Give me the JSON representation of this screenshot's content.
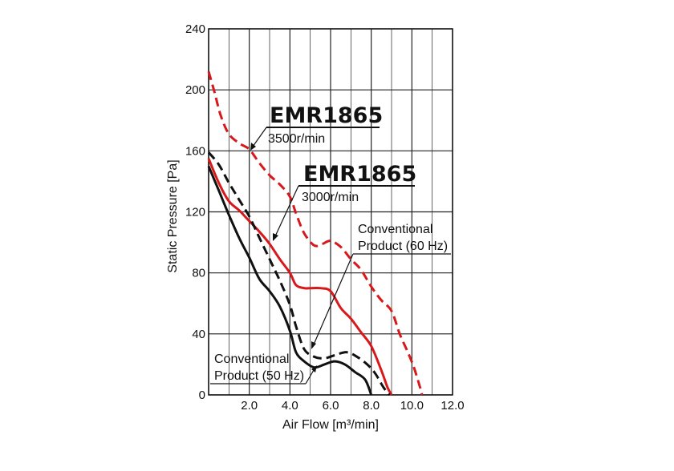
{
  "chart_data": {
    "type": "line",
    "xlabel": "Air Flow [m³/min]",
    "ylabel": "Static Pressure [Pa]",
    "xlim": [
      0,
      12
    ],
    "ylim": [
      0,
      240
    ],
    "xticks": [
      {
        "value": 2,
        "label": "2.0"
      },
      {
        "value": 4,
        "label": "4.0"
      },
      {
        "value": 6,
        "label": "6.0"
      },
      {
        "value": 8,
        "label": "8.0"
      },
      {
        "value": 10,
        "label": "10.0"
      },
      {
        "value": 12,
        "label": "12.0"
      }
    ],
    "yticks": [
      {
        "value": 0,
        "label": "0"
      },
      {
        "value": 40,
        "label": "40"
      },
      {
        "value": 80,
        "label": "80"
      },
      {
        "value": 120,
        "label": "120"
      },
      {
        "value": 160,
        "label": "160"
      },
      {
        "value": 200,
        "label": "200"
      },
      {
        "value": 240,
        "label": "240"
      }
    ],
    "grid": true,
    "series": [
      {
        "color": "#d7191c",
        "dash": "dashed",
        "points": [
          [
            0,
            212
          ],
          [
            0.3,
            198
          ],
          [
            0.6,
            183
          ],
          [
            1.0,
            171
          ],
          [
            1.5,
            165
          ],
          [
            2.0,
            161
          ],
          [
            2.5,
            152
          ],
          [
            3.0,
            144
          ],
          [
            3.5,
            138
          ],
          [
            4.0,
            130
          ],
          [
            4.3,
            119
          ],
          [
            4.7,
            106
          ],
          [
            5.2,
            98
          ],
          [
            5.6,
            99
          ],
          [
            6.0,
            101
          ],
          [
            6.5,
            97
          ],
          [
            7.0,
            89
          ],
          [
            7.5,
            82
          ],
          [
            8.0,
            71
          ],
          [
            8.5,
            62
          ],
          [
            9.0,
            55
          ],
          [
            9.4,
            40
          ],
          [
            9.8,
            28
          ],
          [
            10.1,
            18
          ],
          [
            10.4,
            5
          ],
          [
            10.5,
            0
          ]
        ]
      },
      {
        "color": "#d7191c",
        "dash": "solid",
        "points": [
          [
            0,
            155
          ],
          [
            0.5,
            139
          ],
          [
            1.0,
            127
          ],
          [
            1.5,
            121
          ],
          [
            2.0,
            114
          ],
          [
            2.5,
            107
          ],
          [
            3.0,
            99
          ],
          [
            3.5,
            89
          ],
          [
            4.0,
            80
          ],
          [
            4.3,
            72
          ],
          [
            4.7,
            70
          ],
          [
            5.0,
            70
          ],
          [
            5.5,
            70
          ],
          [
            6.0,
            68
          ],
          [
            6.5,
            57
          ],
          [
            7.0,
            50
          ],
          [
            7.5,
            41
          ],
          [
            8.0,
            32
          ],
          [
            8.5,
            16
          ],
          [
            8.8,
            5
          ],
          [
            9.0,
            0
          ]
        ]
      },
      {
        "color": "#111111",
        "dash": "dashed",
        "points": [
          [
            0,
            159
          ],
          [
            0.5,
            151
          ],
          [
            1.0,
            139
          ],
          [
            1.5,
            128
          ],
          [
            2.0,
            117
          ],
          [
            2.5,
            103
          ],
          [
            3.0,
            89
          ],
          [
            3.5,
            75
          ],
          [
            4.0,
            59
          ],
          [
            4.3,
            45
          ],
          [
            4.7,
            30
          ],
          [
            5.2,
            25
          ],
          [
            5.7,
            24
          ],
          [
            6.2,
            26
          ],
          [
            6.8,
            28
          ],
          [
            7.3,
            25
          ],
          [
            7.8,
            20
          ],
          [
            8.2,
            14
          ],
          [
            8.6,
            5
          ],
          [
            8.9,
            0
          ]
        ]
      },
      {
        "color": "#111111",
        "dash": "solid",
        "points": [
          [
            0,
            150
          ],
          [
            0.5,
            134
          ],
          [
            1.0,
            118
          ],
          [
            1.5,
            103
          ],
          [
            2.0,
            90
          ],
          [
            2.5,
            76
          ],
          [
            3.0,
            68
          ],
          [
            3.5,
            58
          ],
          [
            4.0,
            42
          ],
          [
            4.3,
            28
          ],
          [
            4.7,
            22
          ],
          [
            5.2,
            18
          ],
          [
            5.7,
            20
          ],
          [
            6.2,
            22
          ],
          [
            6.7,
            20
          ],
          [
            7.2,
            15
          ],
          [
            7.7,
            10
          ],
          [
            8.0,
            0
          ]
        ]
      }
    ],
    "annotations": [
      {
        "title": "EMR1865",
        "subtitle": "3500r/min"
      },
      {
        "title": "EMR1865",
        "subtitle": "3000r/min"
      },
      {
        "line1": "Conventional",
        "line2": "Product  (60 Hz)"
      },
      {
        "line1": "Conventional",
        "line2": "Product  (50 Hz)"
      }
    ]
  }
}
